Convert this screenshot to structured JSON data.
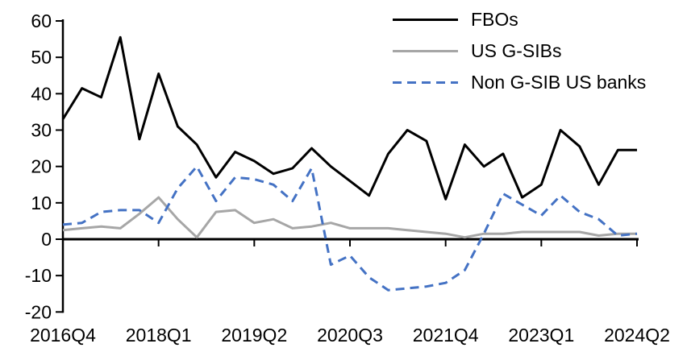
{
  "page": {
    "background": "#ffffff"
  },
  "legend": {
    "position": "top-right"
  },
  "chart_data": {
    "type": "line",
    "title": "",
    "xlabel": "",
    "ylabel": "",
    "ylim": [
      -20,
      60
    ],
    "y_ticks": [
      60,
      50,
      40,
      30,
      20,
      10,
      0,
      -10,
      -20
    ],
    "x_tick_labels": [
      "2016Q4",
      "2018Q1",
      "2019Q2",
      "2020Q3",
      "2021Q4",
      "2023Q1",
      "2024Q2"
    ],
    "grid": false,
    "legend_position": "top-right",
    "categories": [
      "2016Q4",
      "2017Q1",
      "2017Q2",
      "2017Q3",
      "2017Q4",
      "2018Q1",
      "2018Q2",
      "2018Q3",
      "2018Q4",
      "2019Q1",
      "2019Q2",
      "2019Q3",
      "2019Q4",
      "2020Q1",
      "2020Q2",
      "2020Q3",
      "2020Q4",
      "2021Q1",
      "2021Q2",
      "2021Q3",
      "2021Q4",
      "2022Q1",
      "2022Q2",
      "2022Q3",
      "2022Q4",
      "2023Q1",
      "2023Q2",
      "2023Q3",
      "2023Q4",
      "2024Q1",
      "2024Q2"
    ],
    "series": [
      {
        "name": "FBOs",
        "color": "#000000",
        "dash": "solid",
        "values": [
          33,
          41.5,
          39,
          55.5,
          27.5,
          45.5,
          31,
          26,
          17,
          24,
          21.5,
          18,
          19.5,
          25,
          20,
          16,
          12,
          23.5,
          30,
          27,
          11,
          26,
          20,
          23.5,
          11.5,
          15,
          30,
          25.5,
          15,
          24.5,
          24.5
        ]
      },
      {
        "name": "US G-SIBs",
        "color": "#a6a6a6",
        "dash": "solid",
        "values": [
          2.5,
          3,
          3.5,
          3,
          7,
          11.5,
          5.5,
          0.5,
          7.5,
          8,
          4.5,
          5.5,
          3,
          3.5,
          4.5,
          3,
          3,
          3,
          2.5,
          2,
          1.5,
          0.5,
          1.5,
          1.5,
          2,
          2,
          2,
          2,
          1,
          1.5,
          1.5
        ]
      },
      {
        "name": "Non G-SIB US banks",
        "color": "#4472c4",
        "dash": "dashed",
        "values": [
          4,
          4.5,
          7.5,
          8,
          8,
          4.5,
          14,
          20,
          10.5,
          17,
          16.5,
          15,
          10.5,
          19.5,
          -7,
          -4.5,
          -10.5,
          -14,
          -13.5,
          -13,
          -12,
          -8.5,
          1.5,
          12.5,
          9.5,
          6.5,
          12,
          7.5,
          5.5,
          1,
          1.5
        ]
      }
    ]
  }
}
